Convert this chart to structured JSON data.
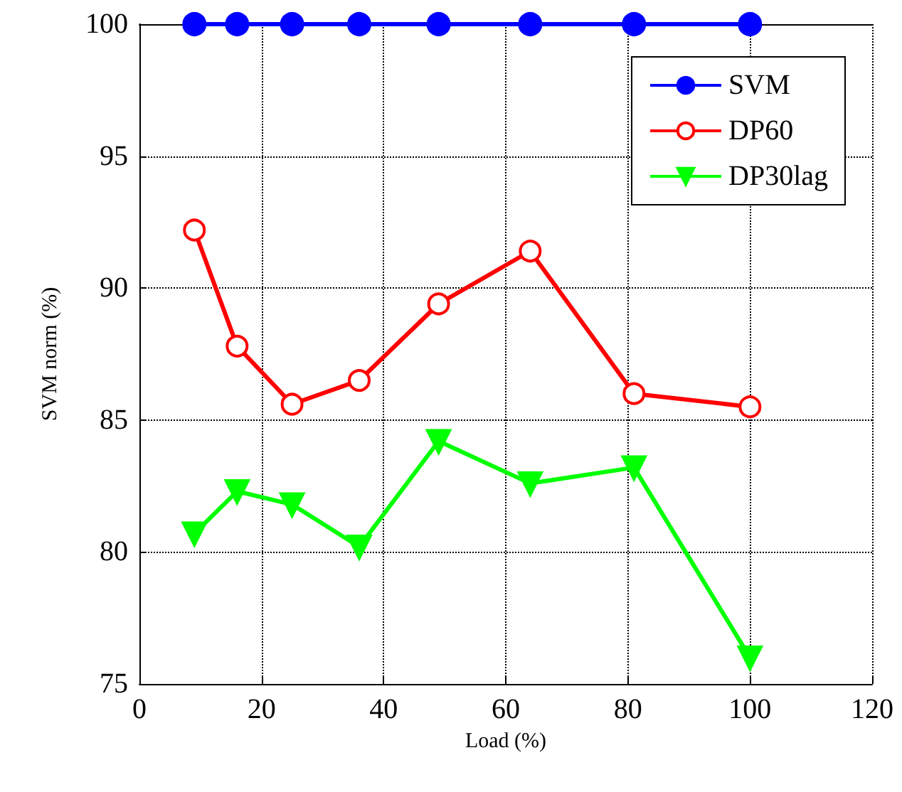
{
  "chart_data": {
    "type": "line",
    "xlabel": "Load (%)",
    "ylabel": "SVM norm (%)",
    "x": [
      9,
      16,
      25,
      36,
      49,
      64,
      81,
      100
    ],
    "series": [
      {
        "name": "SVM",
        "color": "#0000ff",
        "marker": "circle",
        "values": [
          100,
          100,
          100,
          100,
          100,
          100,
          100,
          100
        ]
      },
      {
        "name": "DP60",
        "color": "#ff0000",
        "marker": "circle",
        "values": [
          92.2,
          87.8,
          85.6,
          86.5,
          89.4,
          91.4,
          86.0,
          85.5
        ]
      },
      {
        "name": "DP30lag",
        "color": "#00ff00",
        "marker": "triangle",
        "values": [
          80.7,
          82.3,
          81.8,
          80.2,
          84.2,
          82.6,
          83.2,
          76.0
        ]
      }
    ],
    "xlim": [
      0,
      120
    ],
    "xticks": [
      0,
      20,
      40,
      60,
      80,
      100,
      120
    ],
    "ylim": [
      75,
      100
    ],
    "yticks": [
      75,
      80,
      85,
      90,
      95,
      100
    ],
    "grid": true,
    "legend": "top right",
    "line_style": "solid"
  }
}
